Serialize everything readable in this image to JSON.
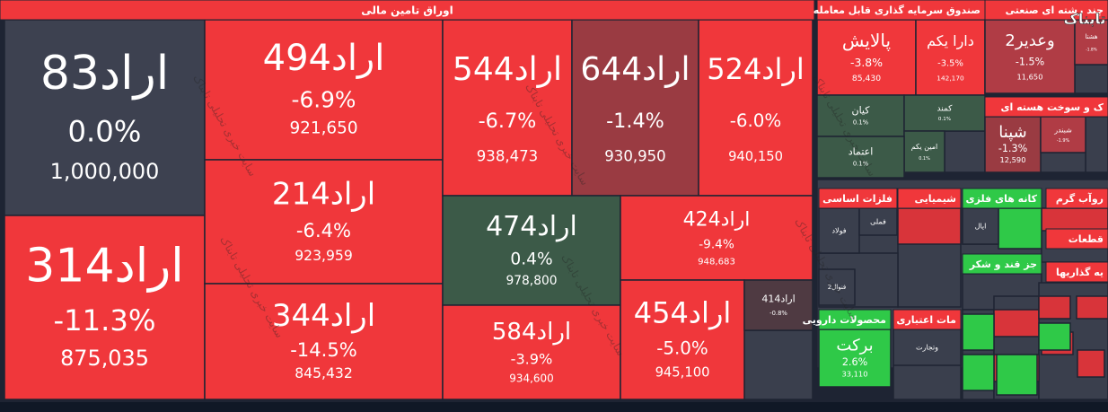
{
  "chart_data": {
    "type": "treemap",
    "logo": "تابناک",
    "watermark": "سایت خبری تحلیلی تابناک",
    "groups": [
      {
        "name": "اوراق تامین مالی",
        "color": "#f0373b",
        "items": [
          {
            "name": "اراد83",
            "values": [
              0,
              1000000
            ],
            "value_labels": [
              "0.0%",
              "1,000,000"
            ]
          },
          {
            "name": "اراد314",
            "values": [
              -11.3,
              875035
            ],
            "value_labels": [
              "-11.3%",
              "875,035"
            ]
          },
          {
            "name": "اراد494",
            "values": [
              -6.9,
              921650
            ],
            "value_labels": [
              "-6.9%",
              "921,650"
            ]
          },
          {
            "name": "اراد214",
            "values": [
              -6.4,
              923959
            ],
            "value_labels": [
              "-6.4%",
              "923,959"
            ]
          },
          {
            "name": "اراد344",
            "values": [
              -14.5,
              845432
            ],
            "value_labels": [
              "-14.5%",
              "845,432"
            ]
          },
          {
            "name": "اراد544",
            "values": [
              -6.7,
              938473
            ],
            "value_labels": [
              "-6.7%",
              "938,473"
            ]
          },
          {
            "name": "اراد644",
            "values": [
              -1.4,
              930950
            ],
            "value_labels": [
              "-1.4%",
              "930,950"
            ]
          },
          {
            "name": "اراد524",
            "values": [
              -6.0,
              940150
            ],
            "value_labels": [
              "-6.0%",
              "940,150"
            ]
          },
          {
            "name": "اراد474",
            "values": [
              0.4,
              978800
            ],
            "value_labels": [
              "0.4%",
              "978,800"
            ]
          },
          {
            "name": "اراد424",
            "values": [
              -9.4,
              948683
            ],
            "value_labels": [
              "-9.4%",
              "948,683"
            ]
          },
          {
            "name": "اراد584",
            "values": [
              -3.9,
              934600
            ],
            "value_labels": [
              "-3.9%",
              "934,600"
            ]
          },
          {
            "name": "اراد454",
            "values": [
              -5.0,
              945100
            ],
            "value_labels": [
              "-5.0%",
              "945,100"
            ]
          },
          {
            "name": "اراد414",
            "values": [
              -0.8
            ],
            "value_labels": [
              "-0.8%"
            ]
          }
        ]
      },
      {
        "name": "صندوق سرمایه گذاری قابل معامله",
        "color": "#f0373b",
        "items": [
          {
            "name": "پالایش",
            "values": [
              -3.8,
              85430
            ],
            "value_labels": [
              "-3.8%",
              "85,430"
            ]
          },
          {
            "name": "دارا یکم",
            "values": [
              -3.5,
              142170
            ],
            "value_labels": [
              "-3.5%",
              "142,170"
            ]
          },
          {
            "name": "کیان",
            "values": [
              0.1
            ],
            "value_labels": [
              "0.1%"
            ]
          },
          {
            "name": "کمند",
            "values": [
              0.1
            ],
            "value_labels": [
              "0.1%"
            ]
          },
          {
            "name": "امین یکم",
            "values": [
              0.1
            ],
            "value_labels": [
              "0.1%"
            ]
          },
          {
            "name": "اعتماد",
            "values": [
              0.1
            ],
            "value_labels": [
              "0.1%"
            ]
          }
        ]
      },
      {
        "name": "چند رشته ای صنعتی",
        "color": "#f0373b",
        "items": [
          {
            "name": "وعدیر2",
            "values": [
              -1.5,
              11650
            ],
            "value_labels": [
              "-1.5%",
              "11,650"
            ]
          },
          {
            "name": "هشتا",
            "values": [
              -1.8
            ],
            "value_labels": [
              "-1.8%"
            ]
          }
        ]
      },
      {
        "name": "ک و سوخت هسته ای",
        "color": "#f0373b",
        "items": [
          {
            "name": "شپنا",
            "values": [
              -1.3,
              12590
            ],
            "value_labels": [
              "-1.3%",
              "12,590"
            ]
          },
          {
            "name": "شبندر",
            "values": [
              -1.9
            ],
            "value_labels": [
              "-1.9%"
            ]
          }
        ]
      },
      {
        "name": "فلزات اساسی",
        "color": "#f0373b",
        "items": [
          {
            "name": "فولاد"
          },
          {
            "name": "فملی"
          },
          {
            "name": "فنوال2"
          }
        ]
      },
      {
        "name": "شیمیایی",
        "color": "#f0373b",
        "items": []
      },
      {
        "name": "کانه های فلزی",
        "color": "#2fc948",
        "items": [
          {
            "name": "ایال"
          }
        ]
      },
      {
        "name": "روآب گرم",
        "color": "#f0373b",
        "items": []
      },
      {
        "name": "قطعات",
        "color": "#f0373b",
        "items": []
      },
      {
        "name": "جز قند و شکر",
        "color": "#2fc948",
        "items": []
      },
      {
        "name": "یه گذاریها",
        "color": "#f0373b",
        "items": []
      },
      {
        "name": "محصولات دارویی",
        "color": "#2fc948",
        "items": [
          {
            "name": "برکت",
            "values": [
              2.6,
              33110
            ],
            "value_labels": [
              "2.6%",
              "33,110"
            ]
          }
        ]
      },
      {
        "name": "مات اعتباری",
        "color": "#f0373b",
        "items": [
          {
            "name": "وتجارت"
          }
        ]
      }
    ]
  }
}
